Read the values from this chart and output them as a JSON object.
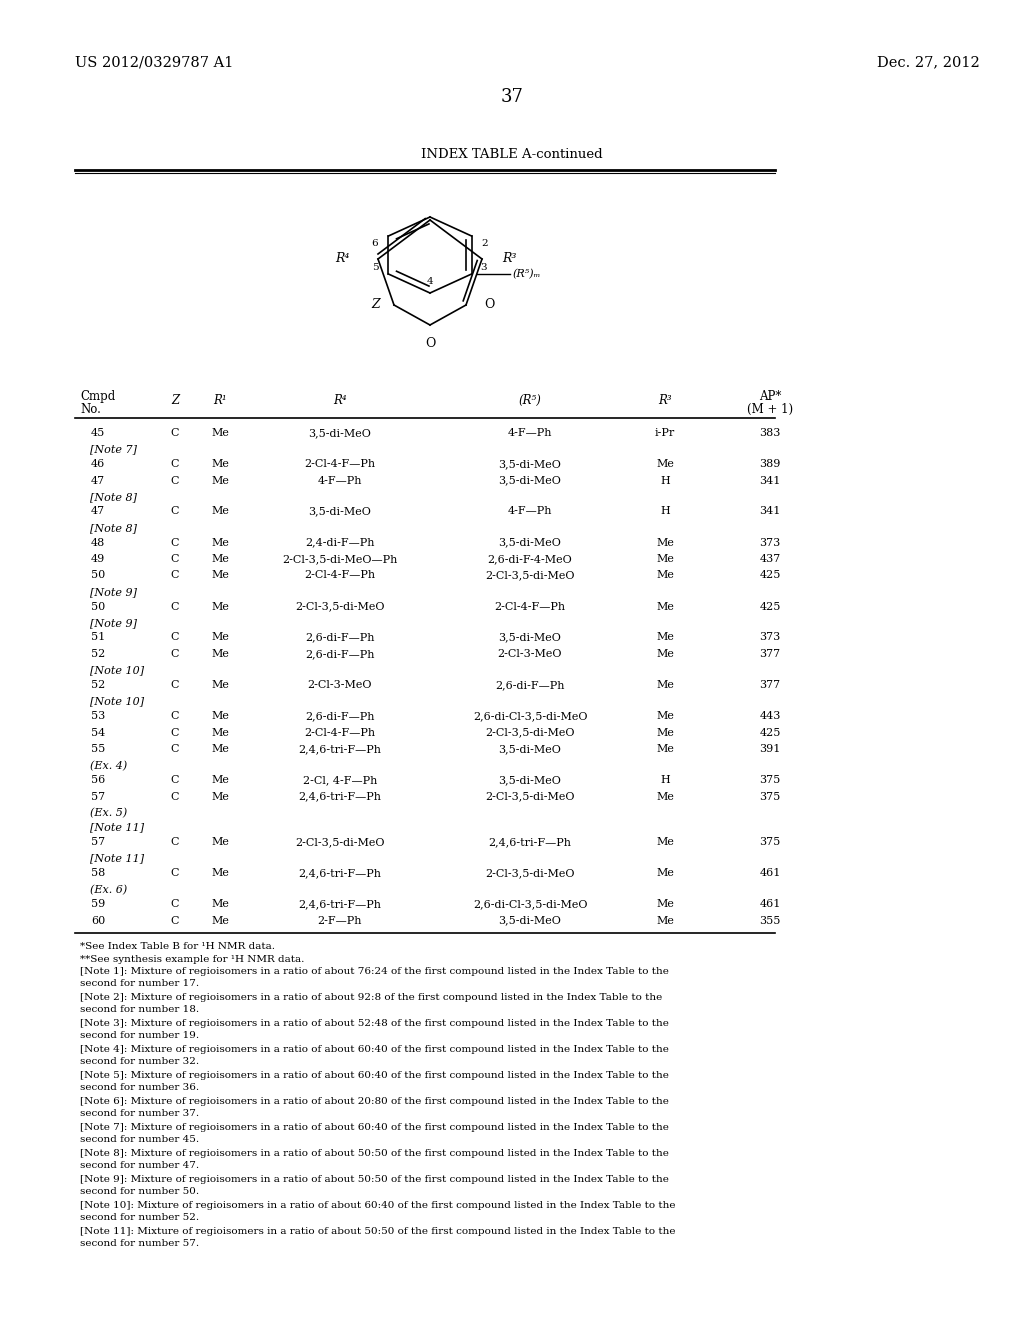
{
  "patent_left": "US 2012/0329787 A1",
  "patent_right": "Dec. 27, 2012",
  "page_number": "37",
  "table_title": "INDEX TABLE A-continued",
  "rows": [
    [
      "45",
      "C",
      "Me",
      "3,5-di-MeO",
      "4-F—Ph",
      "i-Pr",
      "383"
    ],
    [
      "[Note 7]",
      "",
      "",
      "",
      "",
      "",
      ""
    ],
    [
      "46",
      "C",
      "Me",
      "2-Cl-4-F—Ph",
      "3,5-di-MeO",
      "Me",
      "389"
    ],
    [
      "47",
      "C",
      "Me",
      "4-F—Ph",
      "3,5-di-MeO",
      "H",
      "341"
    ],
    [
      "[Note 8]",
      "",
      "",
      "",
      "",
      "",
      ""
    ],
    [
      "47",
      "C",
      "Me",
      "3,5-di-MeO",
      "4-F—Ph",
      "H",
      "341"
    ],
    [
      "[Note 8]",
      "",
      "",
      "",
      "",
      "",
      ""
    ],
    [
      "48",
      "C",
      "Me",
      "2,4-di-F—Ph",
      "3,5-di-MeO",
      "Me",
      "373"
    ],
    [
      "49",
      "C",
      "Me",
      "2-Cl-3,5-di-MeO—Ph",
      "2,6-di-F-4-MeO",
      "Me",
      "437"
    ],
    [
      "50",
      "C",
      "Me",
      "2-Cl-4-F—Ph",
      "2-Cl-3,5-di-MeO",
      "Me",
      "425"
    ],
    [
      "[Note 9]",
      "",
      "",
      "",
      "",
      "",
      ""
    ],
    [
      "50",
      "C",
      "Me",
      "2-Cl-3,5-di-MeO",
      "2-Cl-4-F—Ph",
      "Me",
      "425"
    ],
    [
      "[Note 9]",
      "",
      "",
      "",
      "",
      "",
      ""
    ],
    [
      "51",
      "C",
      "Me",
      "2,6-di-F—Ph",
      "3,5-di-MeO",
      "Me",
      "373"
    ],
    [
      "52",
      "C",
      "Me",
      "2,6-di-F—Ph",
      "2-Cl-3-MeO",
      "Me",
      "377"
    ],
    [
      "[Note 10]",
      "",
      "",
      "",
      "",
      "",
      ""
    ],
    [
      "52",
      "C",
      "Me",
      "2-Cl-3-MeO",
      "2,6-di-F—Ph",
      "Me",
      "377"
    ],
    [
      "[Note 10]",
      "",
      "",
      "",
      "",
      "",
      ""
    ],
    [
      "53",
      "C",
      "Me",
      "2,6-di-F—Ph",
      "2,6-di-Cl-3,5-di-MeO",
      "Me",
      "443"
    ],
    [
      "54",
      "C",
      "Me",
      "2-Cl-4-F—Ph",
      "2-Cl-3,5-di-MeO",
      "Me",
      "425"
    ],
    [
      "55",
      "C",
      "Me",
      "2,4,6-tri-F—Ph",
      "3,5-di-MeO",
      "Me",
      "391"
    ],
    [
      "(Ex. 4)",
      "",
      "",
      "",
      "",
      "",
      ""
    ],
    [
      "56",
      "C",
      "Me",
      "2-Cl, 4-F—Ph",
      "3,5-di-MeO",
      "H",
      "375"
    ],
    [
      "57",
      "C",
      "Me",
      "2,4,6-tri-F—Ph",
      "2-Cl-3,5-di-MeO",
      "Me",
      "375"
    ],
    [
      "(Ex. 5)",
      "",
      "",
      "",
      "",
      "",
      ""
    ],
    [
      "[Note 11]",
      "",
      "",
      "",
      "",
      "",
      ""
    ],
    [
      "57",
      "C",
      "Me",
      "2-Cl-3,5-di-MeO",
      "2,4,6-tri-F—Ph",
      "Me",
      "375"
    ],
    [
      "[Note 11]",
      "",
      "",
      "",
      "",
      "",
      ""
    ],
    [
      "58",
      "C",
      "Me",
      "2,4,6-tri-F—Ph",
      "2-Cl-3,5-di-MeO",
      "Me",
      "461"
    ],
    [
      "(Ex. 6)",
      "",
      "",
      "",
      "",
      "",
      ""
    ],
    [
      "59",
      "C",
      "Me",
      "2,4,6-tri-F—Ph",
      "2,6-di-Cl-3,5-di-MeO",
      "Me",
      "461"
    ],
    [
      "60",
      "C",
      "Me",
      "2-F—Ph",
      "3,5-di-MeO",
      "Me",
      "355"
    ]
  ],
  "footnotes": [
    "*See Index Table B for ¹H NMR data.",
    "**See synthesis example for ¹H NMR data.",
    "[Note 1]: Mixture of regioisomers in a ratio of about 76:24 of the first compound listed in the Index Table to the\nsecond for number 17.",
    "[Note 2]: Mixture of regioisomers in a ratio of about 92:8 of the first compound listed in the Index Table to the\nsecond for number 18.",
    "[Note 3]: Mixture of regioisomers in a ratio of about 52:48 of the first compound listed in the Index Table to the\nsecond for number 19.",
    "[Note 4]: Mixture of regioisomers in a ratio of about 60:40 of the first compound listed in the Index Table to the\nsecond for number 32.",
    "[Note 5]: Mixture of regioisomers in a ratio of about 60:40 of the first compound listed in the Index Table to the\nsecond for number 36.",
    "[Note 6]: Mixture of regioisomers in a ratio of about 20:80 of the first compound listed in the Index Table to the\nsecond for number 37.",
    "[Note 7]: Mixture of regioisomers in a ratio of about 60:40 of the first compound listed in the Index Table to the\nsecond for number 45.",
    "[Note 8]: Mixture of regioisomers in a ratio of about 50:50 of the first compound listed in the Index Table to the\nsecond for number 47.",
    "[Note 9]: Mixture of regioisomers in a ratio of about 50:50 of the first compound listed in the Index Table to the\nsecond for number 50.",
    "[Note 10]: Mixture of regioisomers in a ratio of about 60:40 of the first compound listed in the Index Table to the\nsecond for number 52.",
    "[Note 11]: Mixture of regioisomers in a ratio of about 50:50 of the first compound listed in the Index Table to the\nsecond for number 57."
  ]
}
